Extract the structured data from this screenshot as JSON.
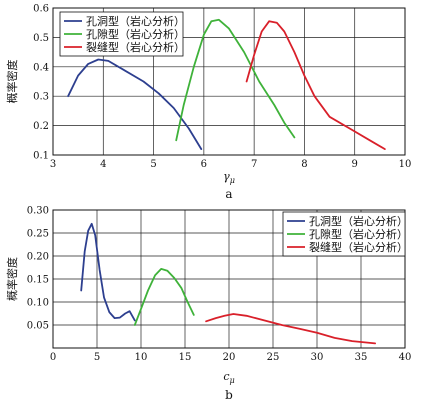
{
  "chart_data": [
    {
      "type": "line",
      "panel_label": "a",
      "xlabel": "γμ",
      "ylabel": "概率密度",
      "xlim": [
        3,
        10
      ],
      "ylim": [
        0.1,
        0.6
      ],
      "xticks": [
        3,
        4,
        5,
        6,
        7,
        8,
        9,
        10
      ],
      "yticks": [
        0.1,
        0.2,
        0.3,
        0.4,
        0.5,
        0.6
      ],
      "grid": true,
      "legend_position": "top-left",
      "series": [
        {
          "name": "孔洞型（岩心分析）",
          "color": "#2d3f8f",
          "x": [
            3.3,
            3.5,
            3.7,
            3.9,
            4.1,
            4.4,
            4.8,
            5.1,
            5.4,
            5.7,
            5.95
          ],
          "y": [
            0.3,
            0.37,
            0.41,
            0.425,
            0.42,
            0.39,
            0.35,
            0.31,
            0.26,
            0.19,
            0.12
          ]
        },
        {
          "name": "孔隙型（岩心分析）",
          "color": "#3fb23a",
          "x": [
            5.45,
            5.6,
            5.8,
            6.0,
            6.15,
            6.3,
            6.5,
            6.8,
            7.1,
            7.4,
            7.6,
            7.8
          ],
          "y": [
            0.15,
            0.27,
            0.4,
            0.51,
            0.555,
            0.56,
            0.53,
            0.45,
            0.35,
            0.27,
            0.21,
            0.16
          ]
        },
        {
          "name": "裂缝型（岩心分析）",
          "color": "#d9202a",
          "x": [
            6.85,
            7.0,
            7.15,
            7.3,
            7.45,
            7.6,
            7.8,
            8.0,
            8.2,
            8.5,
            8.9,
            9.3,
            9.6
          ],
          "y": [
            0.35,
            0.44,
            0.52,
            0.555,
            0.55,
            0.52,
            0.45,
            0.37,
            0.3,
            0.23,
            0.19,
            0.15,
            0.12
          ]
        }
      ]
    },
    {
      "type": "line",
      "panel_label": "b",
      "xlabel": "cμ",
      "ylabel": "概率密度",
      "xlim": [
        0,
        40
      ],
      "ylim": [
        0,
        0.3
      ],
      "xticks": [
        0,
        5,
        10,
        15,
        20,
        25,
        30,
        35,
        40
      ],
      "yticks": [
        0.05,
        0.1,
        0.15,
        0.2,
        0.25,
        0.3
      ],
      "grid": true,
      "legend_position": "top-right",
      "series": [
        {
          "name": "孔洞型（岩心分析）",
          "color": "#2d3f8f",
          "x": [
            3.2,
            3.6,
            4.0,
            4.4,
            4.8,
            5.3,
            5.8,
            6.4,
            7.0,
            7.6,
            8.2,
            8.7,
            9.0,
            9.3
          ],
          "y": [
            0.125,
            0.21,
            0.255,
            0.27,
            0.245,
            0.17,
            0.11,
            0.078,
            0.065,
            0.066,
            0.075,
            0.08,
            0.07,
            0.06
          ]
        },
        {
          "name": "孔隙型（岩心分析）",
          "color": "#3fb23a",
          "x": [
            9.3,
            10.0,
            10.8,
            11.6,
            12.3,
            13.0,
            13.8,
            14.6,
            15.3,
            16.0
          ],
          "y": [
            0.05,
            0.085,
            0.125,
            0.158,
            0.172,
            0.168,
            0.152,
            0.13,
            0.1,
            0.072
          ]
        },
        {
          "name": "裂缝型（岩心分析）",
          "color": "#d9202a",
          "x": [
            17.4,
            18.5,
            19.5,
            20.5,
            22.0,
            24.0,
            26.0,
            28.0,
            30.0,
            32.0,
            34.0,
            36.6
          ],
          "y": [
            0.058,
            0.065,
            0.07,
            0.074,
            0.07,
            0.06,
            0.05,
            0.042,
            0.033,
            0.022,
            0.015,
            0.01
          ]
        }
      ]
    }
  ]
}
